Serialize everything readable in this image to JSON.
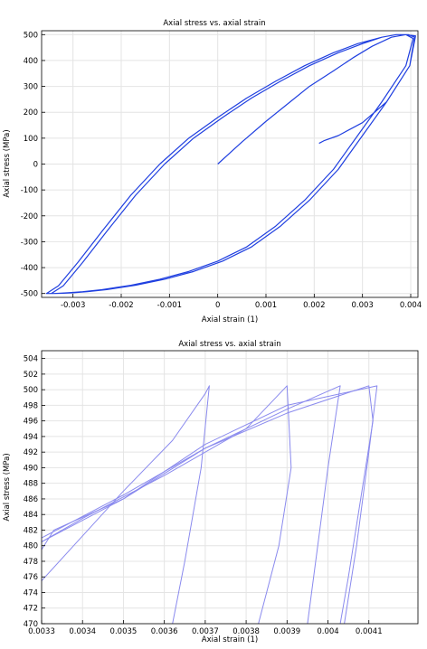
{
  "chart_data": [
    {
      "type": "line",
      "title": "Axial stress vs. axial strain",
      "xlabel": "Axial strain (1)",
      "ylabel": "Axial stress (MPa)",
      "xlim": [
        -0.00365,
        0.00415
      ],
      "ylim": [
        -515,
        515
      ],
      "xticks": [
        -0.003,
        -0.002,
        -0.001,
        0,
        0.001,
        0.002,
        0.003,
        0.004
      ],
      "xtick_labels": [
        "-0.003",
        "-0.002",
        "-0.001",
        "0",
        "0.001",
        "0.002",
        "0.003",
        "0.004"
      ],
      "yticks": [
        -500,
        -400,
        -300,
        -200,
        -100,
        0,
        100,
        200,
        300,
        400,
        500
      ],
      "ytick_labels": [
        "-500",
        "-400",
        "-300",
        "-200",
        "-100",
        "0",
        "100",
        "200",
        "300",
        "400",
        "500"
      ],
      "grid": true,
      "line_color": "#1f3fe0",
      "series": [
        {
          "x": [
            0,
            0.0005,
            0.001,
            0.0015,
            0.0019,
            0.0024,
            0.0028,
            0.0032,
            0.0036,
            0.0039,
            0.00405,
            0.0039,
            0.0034,
            0.0029,
            0.0024,
            0.0018,
            0.0012,
            0.0006,
            0.0,
            -0.0006,
            -0.0012,
            -0.0018,
            -0.0024,
            -0.0028,
            -0.0031,
            -0.0033,
            -0.0034,
            -0.00355,
            -0.0033,
            -0.0029,
            -0.0024,
            -0.0018,
            -0.0012,
            -0.0006,
            0.0,
            0.0006,
            0.0012,
            0.0018,
            0.0024,
            0.0029,
            0.0034,
            0.0037,
            0.00395,
            0.00408,
            0.00398,
            0.0035,
            0.003,
            0.0025,
            0.0019,
            0.0013,
            0.0007,
            0.0001,
            -0.0005,
            -0.0011,
            -0.0017,
            -0.0023,
            -0.0027,
            -0.003,
            -0.0032,
            -0.0034,
            -0.00345,
            -0.0032,
            -0.0028,
            -0.0023,
            -0.0017,
            -0.0011,
            -0.0005,
            0.0001,
            0.0007,
            0.0013,
            0.0019,
            0.0025,
            0.003,
            0.0034,
            0.0037,
            0.0039,
            0.0041,
            0.00398,
            0.0035,
            0.003,
            0.0025,
            0.0022,
            0.0021
          ],
          "y": [
            0,
            85,
            165,
            240,
            300,
            360,
            410,
            455,
            490,
            500,
            485,
            380,
            240,
            110,
            -20,
            -140,
            -240,
            -320,
            -375,
            -415,
            -445,
            -468,
            -485,
            -493,
            -497,
            -499,
            -500,
            -500,
            -470,
            -380,
            -260,
            -120,
            0,
            100,
            180,
            255,
            320,
            380,
            430,
            465,
            490,
            500,
            500,
            490,
            380,
            240,
            110,
            -20,
            -140,
            -240,
            -320,
            -375,
            -415,
            -445,
            -468,
            -485,
            -493,
            -497,
            -499,
            -500,
            -500,
            -470,
            -380,
            -260,
            -120,
            0,
            100,
            180,
            255,
            320,
            380,
            430,
            465,
            490,
            500,
            500,
            495,
            380,
            240,
            160,
            110,
            90,
            80
          ]
        }
      ]
    },
    {
      "type": "line",
      "title": "Axial stress vs. axial strain",
      "xlabel": "Axial strain (1)",
      "ylabel": "Axial stress (MPa)",
      "xlim": [
        0.0033,
        0.00422
      ],
      "ylim": [
        470,
        505
      ],
      "xticks": [
        0.0033,
        0.0034,
        0.0035,
        0.0036,
        0.0037,
        0.0038,
        0.0039,
        0.004,
        0.0041
      ],
      "xtick_labels": [
        "0.0033",
        "0.0034",
        "0.0035",
        "0.0036",
        "0.0037",
        "0.0038",
        "0.0039",
        "0.004",
        "0.0041"
      ],
      "yticks": [
        470,
        472,
        474,
        476,
        478,
        480,
        482,
        484,
        486,
        488,
        490,
        492,
        494,
        496,
        498,
        500,
        502,
        504
      ],
      "ytick_labels": [
        "470",
        "472",
        "474",
        "476",
        "478",
        "480",
        "482",
        "484",
        "486",
        "488",
        "490",
        "492",
        "494",
        "496",
        "498",
        "500",
        "502",
        "504"
      ],
      "grid": true,
      "line_color": "#8a8aee",
      "series": [
        {
          "x": [
            0.0033,
            0.0035,
            0.00362,
            0.0037,
            0.00371,
            0.00369,
            0.00365,
            0.00362
          ],
          "y": [
            475.5,
            487,
            493.5,
            499.5,
            500.5,
            490,
            478,
            470
          ]
        },
        {
          "x": [
            0.0033,
            0.0034,
            0.0036,
            0.0038,
            0.0039,
            0.00391,
            0.00388,
            0.00385,
            0.00383
          ],
          "y": [
            480.5,
            483.5,
            489,
            495,
            500.5,
            490,
            480,
            474,
            470
          ]
        },
        {
          "x": [
            0.0033,
            0.00333,
            0.0035,
            0.0037,
            0.0039,
            0.0041,
            0.00411,
            0.00408,
            0.00405,
            0.00403
          ],
          "y": [
            479.5,
            482,
            486,
            492.5,
            497,
            500.5,
            496,
            486,
            476,
            470
          ]
        },
        {
          "x": [
            0.0033,
            0.0035,
            0.0037,
            0.0039,
            0.00403,
            0.004,
            0.00397,
            0.00395
          ],
          "y": [
            481,
            486.5,
            492.5,
            497.5,
            500.5,
            490,
            478,
            470
          ]
        },
        {
          "x": [
            0.0033,
            0.0035,
            0.0037,
            0.0039,
            0.00412,
            0.0041,
            0.00407,
            0.00404
          ],
          "y": [
            480.5,
            486,
            493,
            498,
            500.5,
            492,
            480,
            470
          ]
        }
      ]
    }
  ]
}
